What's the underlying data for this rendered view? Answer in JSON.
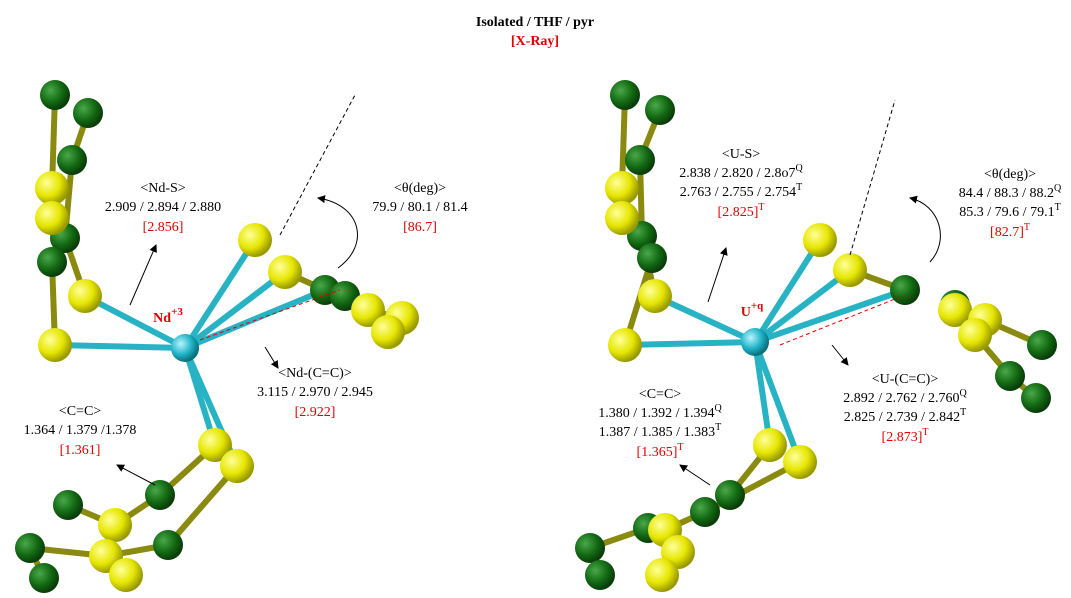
{
  "header": {
    "title": "Isolated / THF / pyr",
    "subtitle": "[X-Ray]"
  },
  "panels": [
    {
      "metal": {
        "symbol": "Nd",
        "charge": "+3"
      },
      "labels": [
        {
          "heading": "<Nd-S>",
          "lines": [
            {
              "text": "2.909 / 2.894 / 2.880"
            }
          ],
          "xray": {
            "text": "[2.856]"
          }
        },
        {
          "heading": "<θ(deg)>",
          "lines": [
            {
              "text": "79.9 / 80.1 / 81.4"
            }
          ],
          "xray": {
            "text": "[86.7]"
          }
        },
        {
          "heading": "<Nd-(C=C)>",
          "lines": [
            {
              "text": "3.115 / 2.970 / 2.945"
            }
          ],
          "xray": {
            "text": "[2.922]"
          }
        },
        {
          "heading": "<C=C>",
          "lines": [
            {
              "text": "1.364 / 1.379 /1.378"
            }
          ],
          "xray": {
            "text": "[1.361]"
          }
        }
      ]
    },
    {
      "metal": {
        "symbol": "U",
        "charge": "+q"
      },
      "labels": [
        {
          "heading": "<U-S>",
          "lines": [
            {
              "text": "2.838 / 2.820 / 2.8o7",
              "sup": "Q"
            },
            {
              "text": "2.763 / 2.755 / 2.754",
              "sup": "T"
            }
          ],
          "xray": {
            "text": "[2.825]",
            "sup": "T"
          }
        },
        {
          "heading": "<θ(deg)>",
          "lines": [
            {
              "text": "84.4 / 88.3 / 88.2",
              "sup": "Q"
            },
            {
              "text": "85.3 / 79.6 / 79.1",
              "sup": "T"
            }
          ],
          "xray": {
            "text": "[82.7]",
            "sup": "T"
          }
        },
        {
          "heading": "<U-(C=C)>",
          "lines": [
            {
              "text": "2.892 / 2.762 / 2.760",
              "sup": "Q"
            },
            {
              "text": "2.825 / 2.739 / 2.842",
              "sup": "T"
            }
          ],
          "xray": {
            "text": "[2.873]",
            "sup": "T"
          }
        },
        {
          "heading": "<C=C>",
          "lines": [
            {
              "text": "1.380 / 1.392 / 1.394",
              "sup": "Q"
            },
            {
              "text": "1.387 / 1.385 / 1.383",
              "sup": "T"
            }
          ],
          "xray": {
            "text": "[1.365]",
            "sup": "T"
          }
        }
      ]
    }
  ]
}
